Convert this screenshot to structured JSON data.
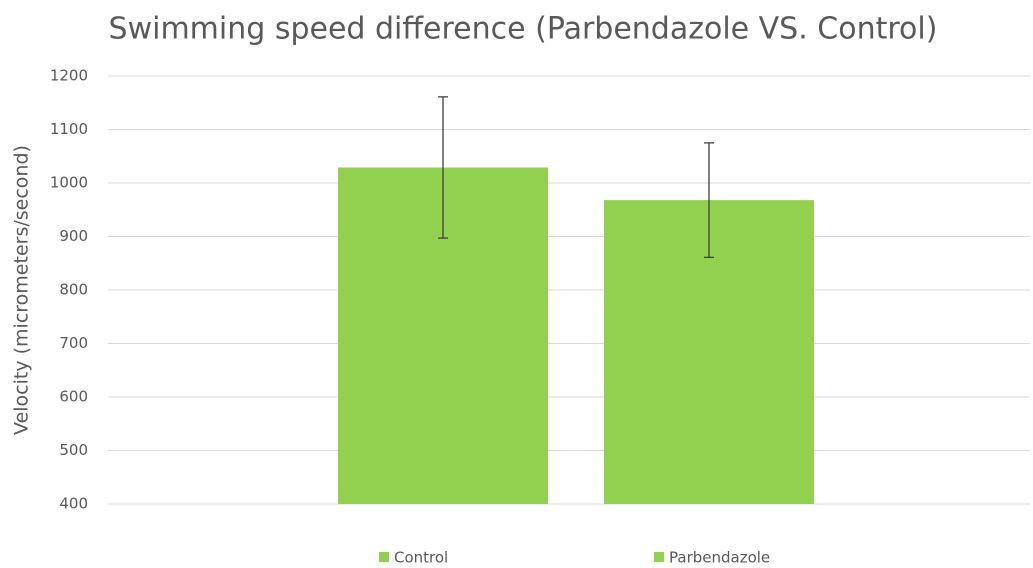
{
  "chart_data": {
    "type": "bar",
    "title": "Swimming speed difference (Parbendazole VS. Control)",
    "y_label": "Velocity (micrometers/second)",
    "categories": [
      null
    ],
    "series": [
      {
        "name": "Control",
        "color": "#92d050",
        "values": [
          1029
        ],
        "errors": [
          132
        ]
      },
      {
        "name": "Parbendazole",
        "color": "#92d050",
        "values": [
          968
        ],
        "errors": [
          107
        ]
      }
    ],
    "ylim": [
      400,
      1200
    ],
    "yticks": [
      400,
      500,
      600,
      700,
      800,
      900,
      1000,
      1100,
      1200
    ],
    "grid": true,
    "legend": "bottom"
  }
}
